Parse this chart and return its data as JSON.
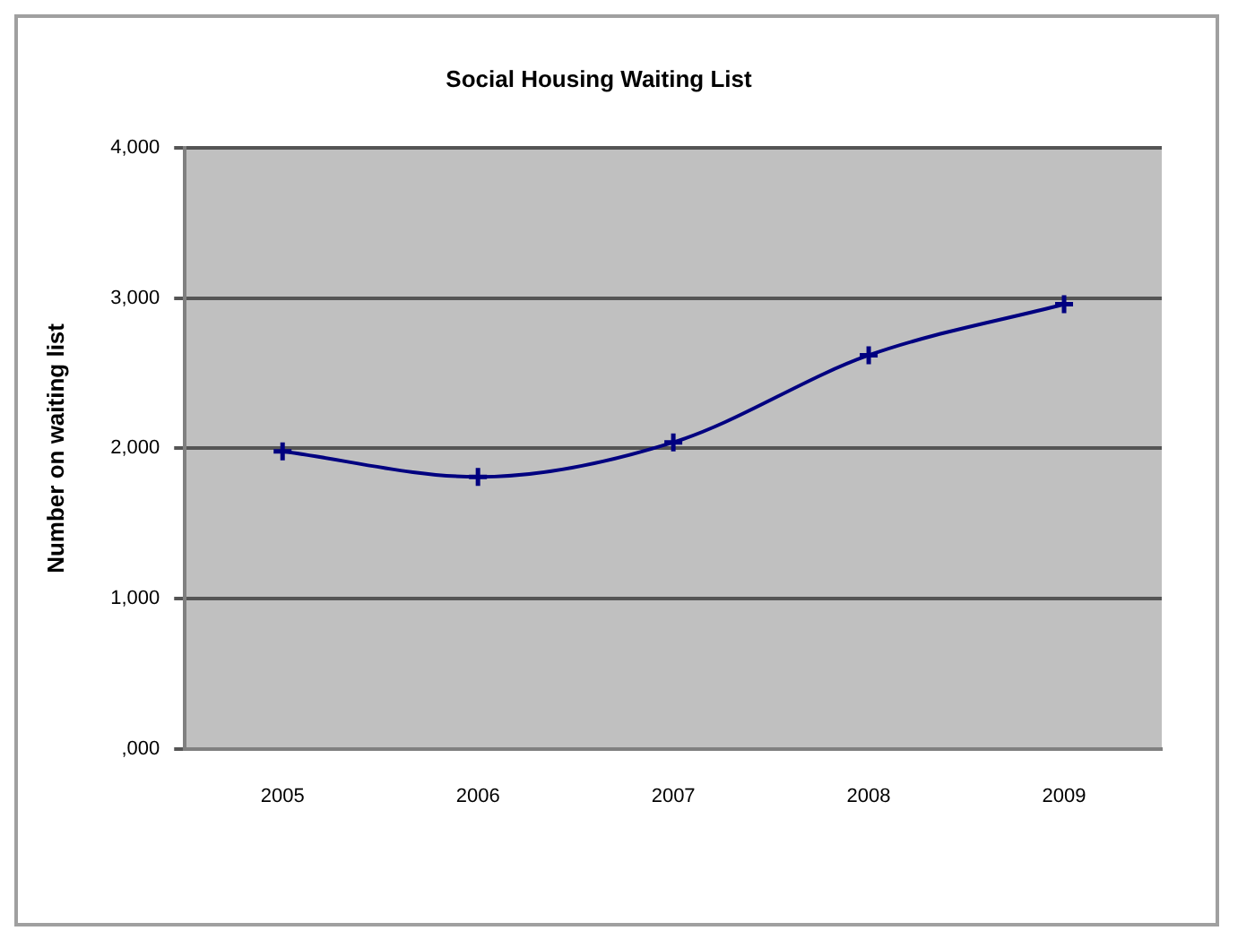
{
  "chart_data": {
    "type": "line",
    "title": "Social Housing Waiting List",
    "ylabel": "Number on waiting list",
    "categories": [
      "2005",
      "2006",
      "2007",
      "2008",
      "2009"
    ],
    "series": [
      {
        "color": "#000080",
        "values": [
          1980,
          1810,
          2040,
          2620,
          2960
        ]
      }
    ],
    "ylim": [
      0,
      4000
    ],
    "yticks": [
      {
        "value": 0,
        "label": ",000"
      },
      {
        "value": 1000,
        "label": "1,000"
      },
      {
        "value": 2000,
        "label": "2,000"
      },
      {
        "value": 3000,
        "label": "3,000"
      },
      {
        "value": 4000,
        "label": "4,000"
      }
    ],
    "grid": "y",
    "legend": false,
    "marker": "cross",
    "line_style": "solid"
  }
}
